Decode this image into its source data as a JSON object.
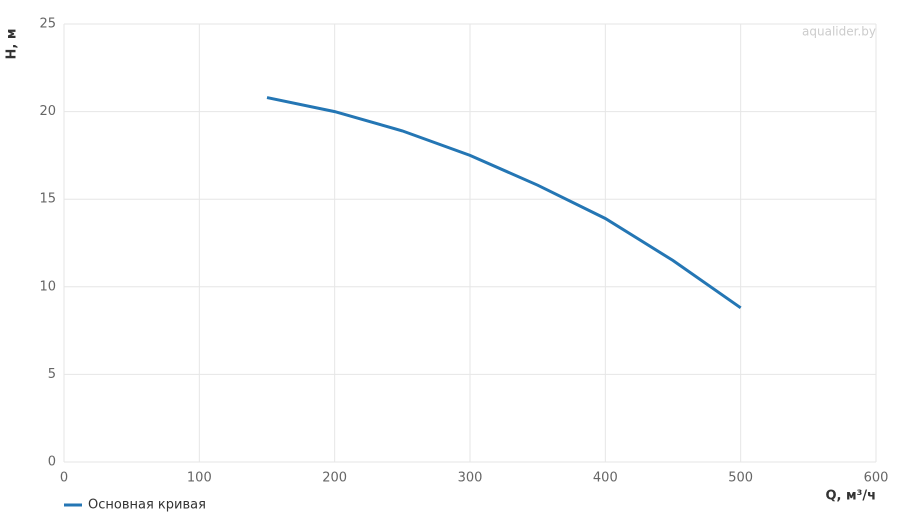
{
  "chart_data": {
    "type": "line",
    "watermark": "aqualider.by",
    "x_label": "Q, м³/ч",
    "y_label": "H, м",
    "x": [
      150,
      200,
      250,
      300,
      350,
      400,
      450,
      500
    ],
    "series": [
      {
        "name": "Основная кривая",
        "color": "#2476b4",
        "values": [
          20.8,
          20.0,
          18.9,
          17.5,
          15.8,
          13.9,
          11.5,
          8.8
        ]
      }
    ],
    "xlim": [
      0,
      600
    ],
    "xticks": [
      0,
      100,
      200,
      300,
      400,
      500,
      600
    ],
    "ylim": [
      0,
      25
    ],
    "yticks": [
      0,
      5,
      10,
      15,
      20,
      25
    ],
    "grid": true
  }
}
